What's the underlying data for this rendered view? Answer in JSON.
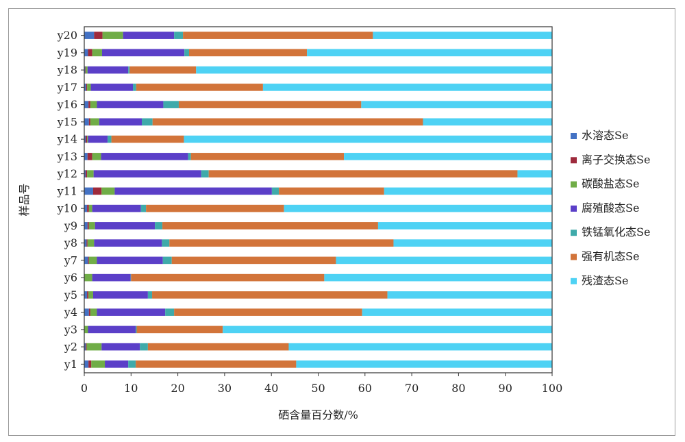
{
  "chart_data": {
    "type": "bar",
    "orientation": "horizontal",
    "stacked": true,
    "title": "",
    "xlabel": "硒含量百分数/%",
    "ylabel": "样品号",
    "xlim": [
      0,
      100
    ],
    "xticks": [
      0,
      10,
      20,
      30,
      40,
      50,
      60,
      70,
      80,
      90,
      100
    ],
    "grid": false,
    "legend_position": "right",
    "categories": [
      "y1",
      "y2",
      "y3",
      "y4",
      "y5",
      "y6",
      "y7",
      "y8",
      "y9",
      "y10",
      "y11",
      "y12",
      "y13",
      "y14",
      "y15",
      "y16",
      "y17",
      "y18",
      "y19",
      "y20"
    ],
    "series": [
      {
        "name": "水溶态Se",
        "color": "#4472c4",
        "values": [
          0.9,
          0.3,
          0.0,
          1.0,
          0.6,
          0.0,
          0.8,
          0.5,
          0.7,
          0.6,
          1.9,
          0.3,
          0.7,
          0.3,
          1.0,
          0.9,
          0.4,
          0.2,
          0.8,
          2.1
        ]
      },
      {
        "name": "离子交换态Se",
        "color": "#9e2a3c",
        "values": [
          0.6,
          0.2,
          0.0,
          0.3,
          0.3,
          0.0,
          0.2,
          0.2,
          0.3,
          0.4,
          1.8,
          0.3,
          1.0,
          0.3,
          0.3,
          0.4,
          0.2,
          0.1,
          0.9,
          1.8
        ]
      },
      {
        "name": "碳酸盐态Se",
        "color": "#70ad47",
        "values": [
          2.9,
          3.2,
          0.8,
          1.4,
          1.0,
          1.7,
          1.7,
          1.4,
          1.3,
          0.7,
          2.8,
          1.4,
          1.9,
          0.2,
          1.9,
          1.4,
          0.8,
          0.4,
          2.1,
          4.4
        ]
      },
      {
        "name": "腐殖酸态Se",
        "color": "#5b3fc8",
        "values": [
          5.0,
          8.2,
          10.2,
          14.6,
          11.7,
          8.2,
          14.1,
          14.5,
          12.8,
          10.4,
          33.6,
          23.0,
          18.6,
          4.2,
          9.1,
          14.2,
          9.0,
          8.7,
          17.6,
          10.9
        ]
      },
      {
        "name": "铁锰氧化态Se",
        "color": "#3faaaa",
        "values": [
          1.6,
          1.7,
          0.2,
          1.9,
          0.9,
          0.1,
          1.9,
          1.6,
          1.6,
          1.1,
          1.5,
          1.6,
          0.6,
          0.8,
          2.3,
          3.3,
          0.7,
          0.3,
          1.0,
          1.9
        ]
      },
      {
        "name": "强有机态Se",
        "color": "#d2743a",
        "values": [
          34.3,
          30.1,
          18.4,
          40.2,
          50.3,
          41.3,
          35.1,
          47.9,
          46.1,
          29.5,
          22.5,
          66.0,
          32.7,
          15.5,
          57.8,
          39.0,
          27.1,
          14.2,
          25.2,
          40.6
        ]
      },
      {
        "name": "残渣态Se",
        "color": "#4ed2f4",
        "values": [
          54.7,
          56.3,
          70.4,
          40.6,
          35.2,
          48.7,
          46.2,
          33.9,
          37.2,
          57.3,
          35.9,
          7.4,
          44.5,
          78.7,
          27.6,
          40.8,
          61.8,
          76.1,
          52.4,
          38.3
        ]
      }
    ]
  }
}
